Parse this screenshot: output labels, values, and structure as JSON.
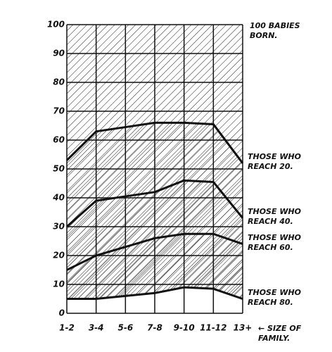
{
  "chart_data": {
    "type": "line",
    "annotation": "100 BABIES BORN.",
    "x_label": "← SIZE OF FAMILY.",
    "categories": [
      "1-2",
      "3-4",
      "5-6",
      "7-8",
      "9-10",
      "11-12",
      "13+"
    ],
    "series": [
      {
        "name": "THOSE WHO REACH 20.",
        "color": "#111111",
        "values": [
          53,
          63,
          64.5,
          66,
          66,
          65.5,
          52
        ]
      },
      {
        "name": "THOSE WHO REACH 40.",
        "color": "#111111",
        "values": [
          30,
          39,
          40.5,
          42,
          46,
          45.5,
          33
        ]
      },
      {
        "name": "THOSE WHO REACH 60.",
        "color": "#111111",
        "values": [
          15,
          20,
          23,
          26,
          27.5,
          27.5,
          24
        ]
      },
      {
        "name": "THOSE WHO REACH 80.",
        "color": "#111111",
        "values": [
          5,
          5,
          6,
          7,
          9,
          8.5,
          5
        ]
      }
    ],
    "ylim": [
      0,
      100
    ],
    "yticks": [
      0,
      10,
      20,
      30,
      40,
      50,
      60,
      70,
      80,
      90,
      100
    ],
    "grid": true
  }
}
